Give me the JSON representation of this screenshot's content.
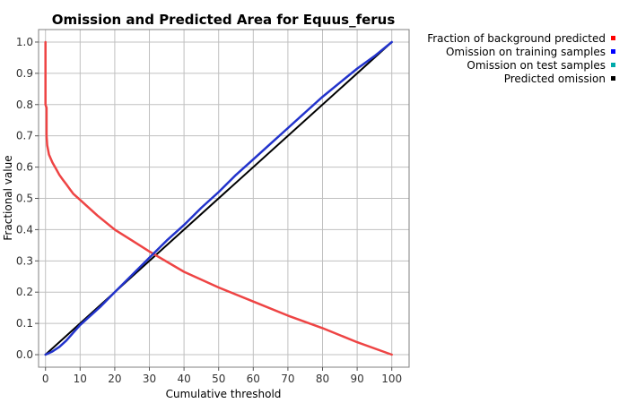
{
  "chart_data": {
    "type": "line",
    "title": "Omission and Predicted Area for Equus_ferus",
    "xlabel": "Cumulative threshold",
    "ylabel": "Fractional value",
    "xlim": [
      -2,
      105
    ],
    "ylim": [
      -0.04,
      1.04
    ],
    "x_ticks": [
      0,
      10,
      20,
      30,
      40,
      50,
      60,
      70,
      80,
      90,
      100
    ],
    "y_ticks": [
      0.0,
      0.1,
      0.2,
      0.3,
      0.4,
      0.5,
      0.6,
      0.7,
      0.8,
      0.9,
      1.0
    ],
    "x_tick_labels": [
      "0",
      "10",
      "20",
      "30",
      "40",
      "50",
      "60",
      "70",
      "80",
      "90",
      "100"
    ],
    "y_tick_labels": [
      "0.0",
      "0.1",
      "0.2",
      "0.3",
      "0.4",
      "0.5",
      "0.6",
      "0.7",
      "0.8",
      "0.9",
      "1.0"
    ],
    "grid": true,
    "legend_position": "outside-top-right",
    "series": [
      {
        "name": "Fraction of background predicted",
        "color": "#ff0000",
        "line_color": "#ee4444",
        "x": [
          0,
          0,
          0.3,
          0.3,
          0.5,
          1,
          2,
          3,
          4,
          5,
          6,
          7,
          8,
          10,
          12,
          15,
          20,
          25,
          30,
          40,
          50,
          60,
          70,
          80,
          90,
          100
        ],
        "y": [
          1.0,
          0.8,
          0.79,
          0.7,
          0.67,
          0.64,
          0.615,
          0.595,
          0.575,
          0.56,
          0.545,
          0.53,
          0.515,
          0.495,
          0.475,
          0.445,
          0.4,
          0.365,
          0.33,
          0.265,
          0.215,
          0.17,
          0.125,
          0.085,
          0.04,
          0.0
        ]
      },
      {
        "name": "Omission on training samples",
        "color": "#0000ff",
        "line_color": "#2233cc",
        "x": [
          0,
          2,
          4,
          6,
          8,
          10,
          13,
          16,
          20,
          25,
          30,
          35,
          40,
          45,
          50,
          55,
          60,
          65,
          70,
          75,
          80,
          85,
          90,
          95,
          100
        ],
        "y": [
          0.0,
          0.01,
          0.025,
          0.045,
          0.07,
          0.095,
          0.125,
          0.155,
          0.2,
          0.255,
          0.31,
          0.365,
          0.415,
          0.47,
          0.52,
          0.575,
          0.625,
          0.675,
          0.725,
          0.775,
          0.825,
          0.87,
          0.915,
          0.955,
          1.0
        ]
      },
      {
        "name": "Omission on test samples",
        "color": "#00aaaa",
        "x": [],
        "y": []
      },
      {
        "name": "Predicted omission",
        "color": "#000000",
        "line_color": "#000000",
        "x": [
          0,
          100
        ],
        "y": [
          0.0,
          1.0
        ]
      }
    ]
  }
}
